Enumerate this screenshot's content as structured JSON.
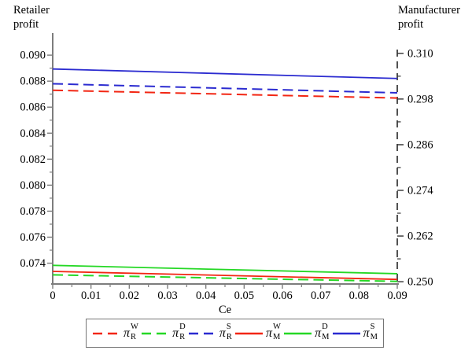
{
  "titles": {
    "left": [
      "Retailer",
      "profit"
    ],
    "right": [
      "Manufacturer",
      "profit"
    ]
  },
  "colors": {
    "red": "#f22613",
    "green": "#25d825",
    "blue": "#2b2bd0",
    "axis": "#7d7d7d",
    "right_axis": "#333333",
    "text": "#000000",
    "background": "#ffffff",
    "legend_border": "#757575"
  },
  "chart_data": {
    "type": "line",
    "title": "",
    "grid": false,
    "x_axis": {
      "label": "Ce",
      "range": [
        0,
        0.09
      ],
      "ticks": [
        {
          "v": 0,
          "label": "0"
        },
        {
          "v": 0.01,
          "label": "0.01"
        },
        {
          "v": 0.02,
          "label": "0.02"
        },
        {
          "v": 0.03,
          "label": "0.03"
        },
        {
          "v": 0.04,
          "label": "0.04"
        },
        {
          "v": 0.05,
          "label": "0.05"
        },
        {
          "v": 0.06,
          "label": "0.06"
        },
        {
          "v": 0.07,
          "label": "0.07"
        },
        {
          "v": 0.08,
          "label": "0.08"
        },
        {
          "v": 0.09,
          "label": "0.09"
        }
      ]
    },
    "left_y_axis": {
      "title": "Retailer profit",
      "range": [
        0.0724,
        0.0917
      ],
      "style": "solid",
      "ticks": [
        {
          "v": 0.09,
          "label": "0.090"
        },
        {
          "v": 0.088,
          "label": "0.088"
        },
        {
          "v": 0.086,
          "label": "0.086"
        },
        {
          "v": 0.084,
          "label": "0.084"
        },
        {
          "v": 0.082,
          "label": "0.082"
        },
        {
          "v": 0.08,
          "label": "0.080"
        },
        {
          "v": 0.078,
          "label": "0.078"
        },
        {
          "v": 0.076,
          "label": "0.076"
        },
        {
          "v": 0.074,
          "label": "0.074"
        }
      ]
    },
    "right_y_axis": {
      "title": "Manufacturer profit",
      "range": [
        0.2494,
        0.311
      ],
      "style": "dashed",
      "ticks": [
        {
          "v": 0.31,
          "label": "0.310"
        },
        {
          "v": 0.298,
          "label": "0.298"
        },
        {
          "v": 0.286,
          "label": "0.286"
        },
        {
          "v": 0.274,
          "label": "0.274"
        },
        {
          "v": 0.262,
          "label": "0.262"
        },
        {
          "v": 0.25,
          "label": "0.250"
        }
      ]
    },
    "series": [
      {
        "name": "pi_R_W",
        "symbol": {
          "base": "π",
          "sup": "W",
          "sub": "R"
        },
        "axis": "left",
        "color_key": "red",
        "dashed": true,
        "x": [
          0,
          0.09
        ],
        "y": [
          0.0873,
          0.0867
        ]
      },
      {
        "name": "pi_R_D",
        "symbol": {
          "base": "π",
          "sup": "D",
          "sub": "R"
        },
        "axis": "left",
        "color_key": "green",
        "dashed": true,
        "x": [
          0,
          0.09
        ],
        "y": [
          0.0731,
          0.0726
        ]
      },
      {
        "name": "pi_R_S",
        "symbol": {
          "base": "π",
          "sup": "S",
          "sub": "R"
        },
        "axis": "left",
        "color_key": "blue",
        "dashed": true,
        "x": [
          0,
          0.09
        ],
        "y": [
          0.0878,
          0.0871
        ]
      },
      {
        "name": "pi_M_W",
        "symbol": {
          "base": "π",
          "sup": "W",
          "sub": "M"
        },
        "axis": "right",
        "color_key": "red",
        "dashed": false,
        "x": [
          0,
          0.09
        ],
        "y": [
          0.2527,
          0.2506
        ]
      },
      {
        "name": "pi_M_D",
        "symbol": {
          "base": "π",
          "sup": "D",
          "sub": "M"
        },
        "axis": "right",
        "color_key": "green",
        "dashed": false,
        "x": [
          0,
          0.09
        ],
        "y": [
          0.2543,
          0.2521
        ]
      },
      {
        "name": "pi_M_S",
        "symbol": {
          "base": "π",
          "sup": "S",
          "sub": "M"
        },
        "axis": "right",
        "color_key": "blue",
        "dashed": false,
        "x": [
          0,
          0.09
        ],
        "y": [
          0.3059,
          0.3034
        ]
      }
    ],
    "legend": {
      "position": "bottom-center",
      "entries": [
        {
          "base": "π",
          "sup": "W",
          "sub": "R",
          "color_key": "red",
          "dashed": true
        },
        {
          "base": "π",
          "sup": "D",
          "sub": "R",
          "color_key": "green",
          "dashed": true
        },
        {
          "base": "π",
          "sup": "S",
          "sub": "R",
          "color_key": "blue",
          "dashed": true
        },
        {
          "base": "π",
          "sup": "W",
          "sub": "M",
          "color_key": "red",
          "dashed": false
        },
        {
          "base": "π",
          "sup": "D",
          "sub": "M",
          "color_key": "green",
          "dashed": false
        },
        {
          "base": "π",
          "sup": "S",
          "sub": "M",
          "color_key": "blue",
          "dashed": false
        }
      ]
    }
  }
}
